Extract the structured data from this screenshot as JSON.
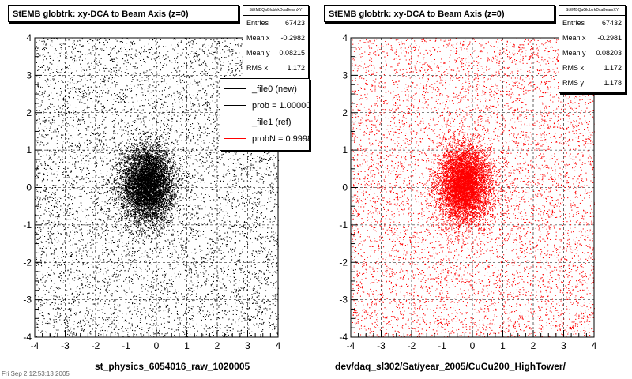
{
  "footer_text": "Fri Sep  2 12:53:13 2005",
  "chart_data": [
    {
      "type": "scatter",
      "title": "StEMB globtrk: xy-DCA to Beam Axis (z=0)",
      "xlabel": "st_physics_6054016_raw_1020005",
      "ylabel": "",
      "xlim": [
        -4,
        4
      ],
      "ylim": [
        -4,
        4
      ],
      "xticks": [
        "-4",
        "-3",
        "-2",
        "-1",
        "0",
        "1",
        "2",
        "3",
        "4"
      ],
      "yticks": [
        "-4",
        "-3",
        "-2",
        "-1",
        "0",
        "1",
        "2",
        "3",
        "4"
      ],
      "grid": true,
      "marker_color": "#000000",
      "distribution": {
        "mean_x": -0.2982,
        "mean_y": 0.08215,
        "rms_x": 1.172,
        "entries": 67423
      },
      "stats": {
        "name": "StEMBQaGlobtrkDcaBeamXY",
        "rows": [
          {
            "label": "Entries",
            "value": "67423"
          },
          {
            "label": "Mean x",
            "value": "-0.2982"
          },
          {
            "label": "Mean y",
            "value": "0.08215"
          },
          {
            "label": "RMS x",
            "value": "1.172"
          }
        ]
      },
      "legend": {
        "placement": "top-right",
        "entries": [
          {
            "label": "_file0 (new)",
            "color": "#000000"
          },
          {
            "label": "prob = 1.000000",
            "color": "#000000"
          },
          {
            "label": "_file1 (ref)",
            "color": "#ff0000"
          },
          {
            "label": "probN = 0.999800",
            "color": "#ff0000"
          }
        ]
      }
    },
    {
      "type": "scatter",
      "title": "StEMB globtrk: xy-DCA to Beam Axis (z=0)",
      "xlabel": "dev/daq_sl302/Sat/year_2005/CuCu200_HighTower/",
      "ylabel": "",
      "xlim": [
        -4,
        4
      ],
      "ylim": [
        -4,
        4
      ],
      "xticks": [
        "-4",
        "-3",
        "-2",
        "-1",
        "0",
        "1",
        "2",
        "3",
        "4"
      ],
      "yticks": [
        "-4",
        "-3",
        "-2",
        "-1",
        "0",
        "1",
        "2",
        "3",
        "4"
      ],
      "grid": true,
      "marker_color": "#ff0000",
      "distribution": {
        "mean_x": -0.2981,
        "mean_y": 0.08203,
        "rms_x": 1.172,
        "rms_y": 1.178,
        "entries": 67432
      },
      "stats": {
        "name": "StEMBQaGlobtrkDcaBeamXY",
        "rows": [
          {
            "label": "Entries",
            "value": "67432"
          },
          {
            "label": "Mean x",
            "value": "-0.2981"
          },
          {
            "label": "Mean y",
            "value": "0.08203"
          },
          {
            "label": "RMS x",
            "value": "1.172"
          },
          {
            "label": "RMS y",
            "value": "1.178"
          }
        ]
      }
    }
  ]
}
